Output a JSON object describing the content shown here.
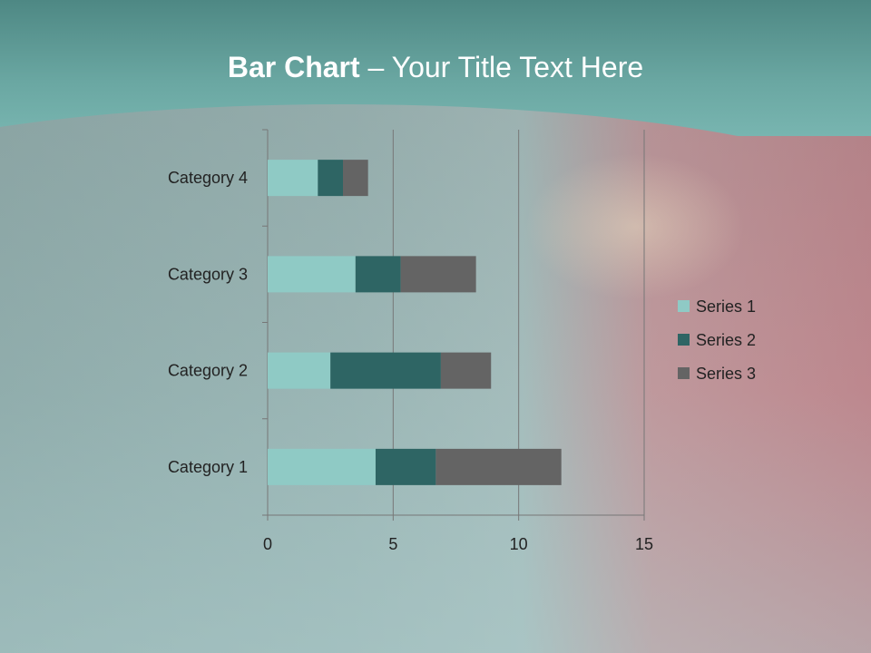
{
  "title": {
    "bold": "Bar Chart",
    "rest": " – Your Title Text Here"
  },
  "chart_data": {
    "type": "bar",
    "orientation": "horizontal",
    "stacked": true,
    "categories": [
      "Category 1",
      "Category 2",
      "Category 3",
      "Category 4"
    ],
    "series": [
      {
        "name": "Series 1",
        "values": [
          4.3,
          2.5,
          3.5,
          2.0
        ],
        "color": "#8fcac5"
      },
      {
        "name": "Series 2",
        "values": [
          2.4,
          4.4,
          1.8,
          1.0
        ],
        "color": "#2e6564"
      },
      {
        "name": "Series 3",
        "values": [
          5.0,
          2.0,
          3.0,
          1.0
        ],
        "color": "#646464"
      }
    ],
    "xlim": [
      0,
      15
    ],
    "xticks": [
      "0",
      "5",
      "10",
      "15"
    ],
    "grid": true,
    "legend": "right"
  }
}
